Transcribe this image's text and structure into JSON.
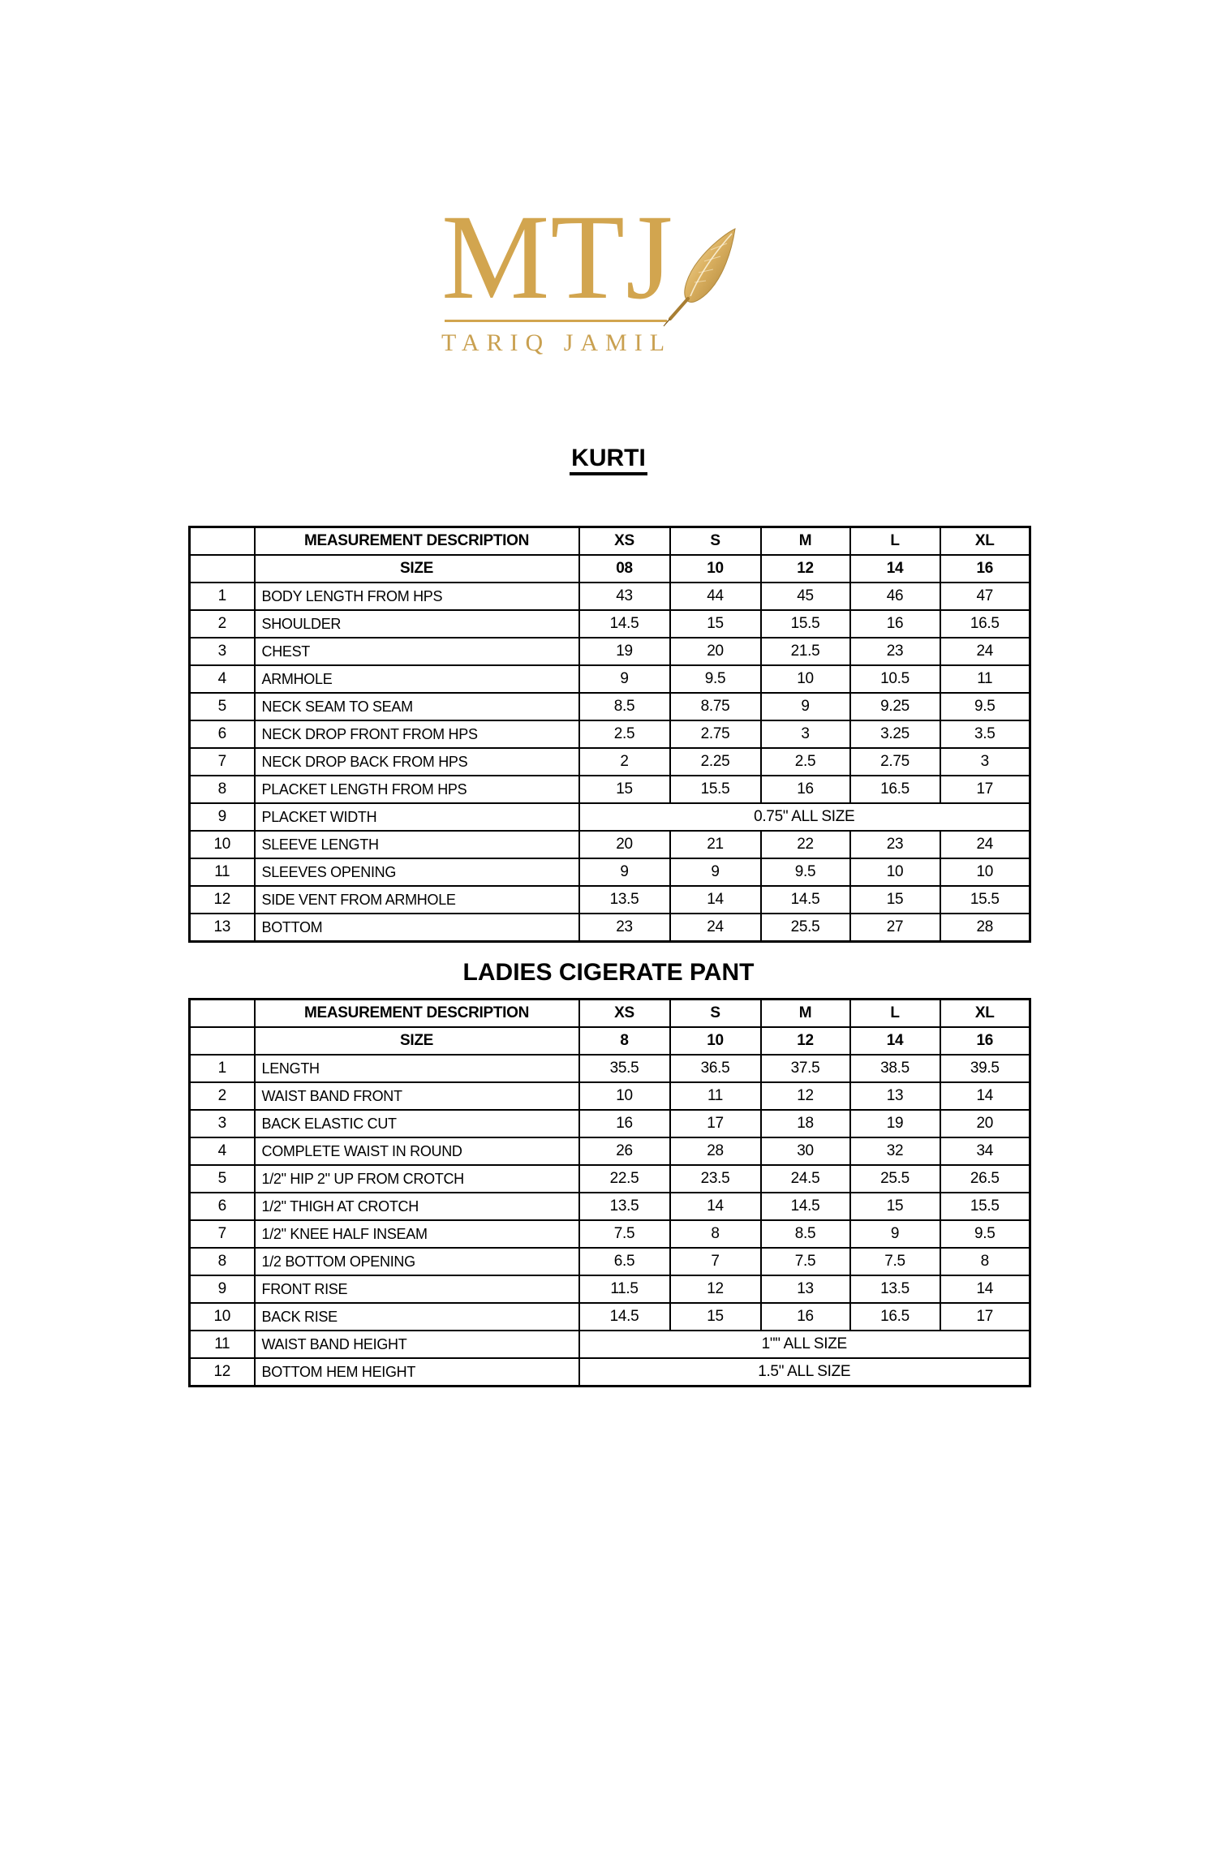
{
  "logo": {
    "monogram": "MTJ",
    "subtitle": "TARIQ JAMIL",
    "quill_icon": "quill-pen-icon",
    "colors": {
      "gold": "#d2a54f"
    }
  },
  "tables": [
    {
      "title": "KURTI",
      "headers": {
        "description": "MEASUREMENT DESCRIPTION",
        "sizes": [
          "XS",
          "S",
          "M",
          "L",
          "XL"
        ]
      },
      "size_row": {
        "label": "SIZE",
        "values": [
          "08",
          "10",
          "12",
          "14",
          "16"
        ]
      },
      "rows": [
        {
          "num": "1",
          "desc": "BODY LENGTH FROM HPS",
          "values": [
            "43",
            "44",
            "45",
            "46",
            "47"
          ]
        },
        {
          "num": "2",
          "desc": "SHOULDER",
          "values": [
            "14.5",
            "15",
            "15.5",
            "16",
            "16.5"
          ]
        },
        {
          "num": "3",
          "desc": "CHEST",
          "values": [
            "19",
            "20",
            "21.5",
            "23",
            "24"
          ]
        },
        {
          "num": "4",
          "desc": "ARMHOLE",
          "values": [
            "9",
            "9.5",
            "10",
            "10.5",
            "11"
          ]
        },
        {
          "num": "5",
          "desc": "NECK SEAM TO SEAM",
          "values": [
            "8.5",
            "8.75",
            "9",
            "9.25",
            "9.5"
          ]
        },
        {
          "num": "6",
          "desc": "NECK DROP FRONT FROM HPS",
          "values": [
            "2.5",
            "2.75",
            "3",
            "3.25",
            "3.5"
          ]
        },
        {
          "num": "7",
          "desc": "NECK DROP BACK FROM HPS",
          "values": [
            "2",
            "2.25",
            "2.5",
            "2.75",
            "3"
          ]
        },
        {
          "num": "8",
          "desc": "PLACKET LENGTH FROM HPS",
          "values": [
            "15",
            "15.5",
            "16",
            "16.5",
            "17"
          ]
        },
        {
          "num": "9",
          "desc": "PLACKET WIDTH",
          "merged": "0.75\" ALL SIZE"
        },
        {
          "num": "10",
          "desc": "SLEEVE LENGTH",
          "values": [
            "20",
            "21",
            "22",
            "23",
            "24"
          ]
        },
        {
          "num": "11",
          "desc": "SLEEVES OPENING",
          "values": [
            "9",
            "9",
            "9.5",
            "10",
            "10"
          ]
        },
        {
          "num": "12",
          "desc": "SIDE VENT FROM ARMHOLE",
          "values": [
            "13.5",
            "14",
            "14.5",
            "15",
            "15.5"
          ]
        },
        {
          "num": "13",
          "desc": "BOTTOM",
          "values": [
            "23",
            "24",
            "25.5",
            "27",
            "28"
          ]
        }
      ]
    },
    {
      "title": "LADIES CIGERATE PANT",
      "headers": {
        "description": "MEASUREMENT DESCRIPTION",
        "sizes": [
          "XS",
          "S",
          "M",
          "L",
          "XL"
        ]
      },
      "size_row": {
        "label": "SIZE",
        "values": [
          "8",
          "10",
          "12",
          "14",
          "16"
        ]
      },
      "rows": [
        {
          "num": "1",
          "desc": "LENGTH",
          "values": [
            "35.5",
            "36.5",
            "37.5",
            "38.5",
            "39.5"
          ]
        },
        {
          "num": "2",
          "desc": "WAIST BAND FRONT",
          "values": [
            "10",
            "11",
            "12",
            "13",
            "14"
          ]
        },
        {
          "num": "3",
          "desc": "BACK ELASTIC CUT",
          "values": [
            "16",
            "17",
            "18",
            "19",
            "20"
          ]
        },
        {
          "num": "4",
          "desc": "COMPLETE WAIST IN ROUND",
          "values": [
            "26",
            "28",
            "30",
            "32",
            "34"
          ]
        },
        {
          "num": "5",
          "desc": "1/2\" HIP 2\" UP FROM CROTCH",
          "values": [
            "22.5",
            "23.5",
            "24.5",
            "25.5",
            "26.5"
          ]
        },
        {
          "num": "6",
          "desc": "1/2\" THIGH AT CROTCH",
          "values": [
            "13.5",
            "14",
            "14.5",
            "15",
            "15.5"
          ]
        },
        {
          "num": "7",
          "desc": "1/2\" KNEE HALF INSEAM",
          "values": [
            "7.5",
            "8",
            "8.5",
            "9",
            "9.5"
          ]
        },
        {
          "num": "8",
          "desc": "1/2 BOTTOM OPENING",
          "values": [
            "6.5",
            "7",
            "7.5",
            "7.5",
            "8"
          ]
        },
        {
          "num": "9",
          "desc": "FRONT RISE",
          "values": [
            "11.5",
            "12",
            "13",
            "13.5",
            "14"
          ]
        },
        {
          "num": "10",
          "desc": "BACK RISE",
          "values": [
            "14.5",
            "15",
            "16",
            "16.5",
            "17"
          ]
        },
        {
          "num": "11",
          "desc": "WAIST BAND HEIGHT",
          "merged": "1\"\" ALL SIZE"
        },
        {
          "num": "12",
          "desc": "BOTTOM HEM HEIGHT",
          "merged": "1.5\" ALL SIZE"
        }
      ]
    }
  ]
}
